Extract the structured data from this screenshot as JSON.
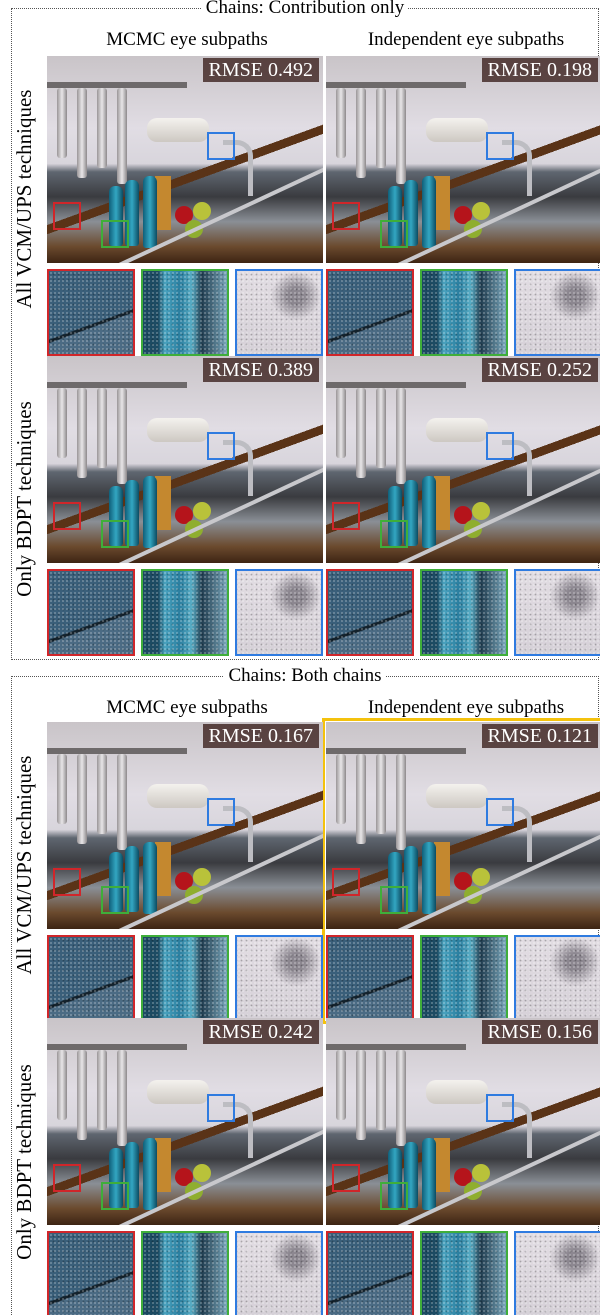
{
  "groups": [
    {
      "title": "Chains: Contribution only",
      "columns": [
        "MCMC eye subpaths",
        "Independent eye subpaths"
      ],
      "rows": [
        {
          "label": "All VCM/UPS techniques",
          "rmse": [
            "RMSE  0.492",
            "RMSE  0.198"
          ]
        },
        {
          "label": "Only BDPT techniques",
          "rmse": [
            "RMSE  0.389",
            "RMSE  0.252"
          ]
        }
      ]
    },
    {
      "title": "Chains: Both chains",
      "columns": [
        "MCMC eye subpaths",
        "Independent eye subpaths"
      ],
      "rows": [
        {
          "label": "All VCM/UPS techniques",
          "rmse": [
            "RMSE  0.167",
            "RMSE  0.121"
          ]
        },
        {
          "label": "Only BDPT techniques",
          "rmse": [
            "RMSE  0.242",
            "RMSE  0.156"
          ]
        }
      ]
    }
  ],
  "highlight": {
    "group": 1,
    "row": 0,
    "column": 1,
    "color": "#f4c20d"
  },
  "inset_colors": {
    "red": "#d0262a",
    "green": "#3fae3a",
    "blue": "#2f7be0"
  }
}
